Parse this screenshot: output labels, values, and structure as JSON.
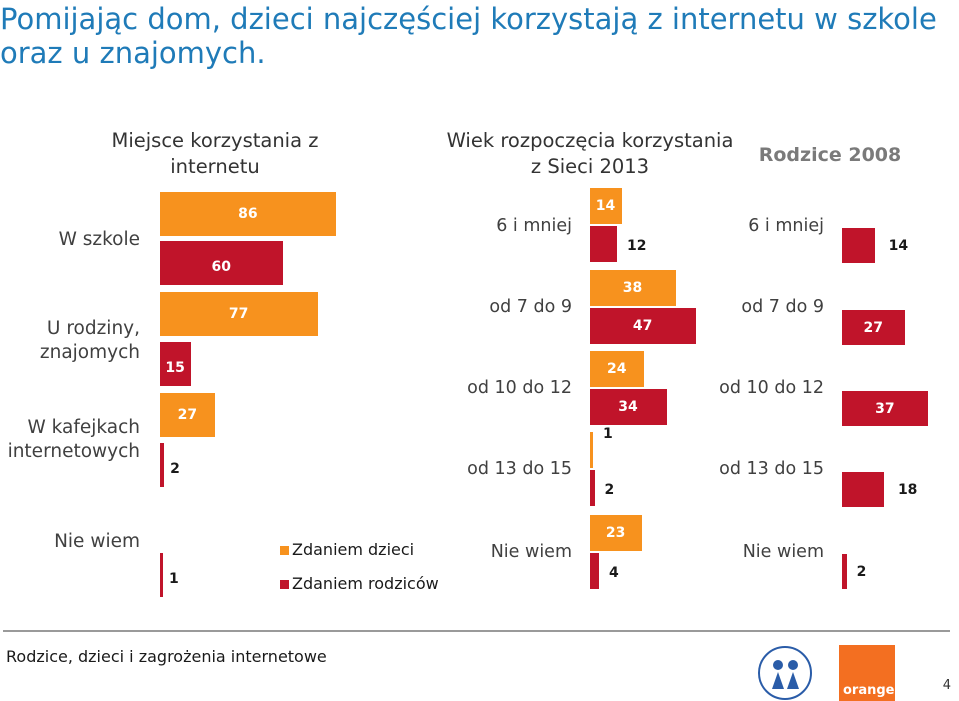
{
  "title": "Pomijając dom, dzieci najczęściej korzystają z internetu w szkole oraz u znajomych.",
  "footer": "Rodzice, dzieci i zagrożenia internetowe",
  "page_number": "4",
  "logos": {
    "left": "FUNDACJA DZIECI NICZYJE",
    "right": "orange"
  },
  "colors": {
    "children": "#f7921e",
    "parents": "#c0142a"
  },
  "legend": {
    "children": "Zdaniem dzieci",
    "parents": "Zdaniem rodziców"
  },
  "chart_data": [
    {
      "type": "bar",
      "title": "Miejsce korzystania z internetu",
      "categories": [
        "W szkole",
        "U rodziny, znajomych",
        "W kafejkach internetowych",
        "Nie wiem"
      ],
      "series": [
        {
          "name": "Zdaniem dzieci",
          "values": [
            86,
            77,
            27,
            null
          ]
        },
        {
          "name": "Zdaniem rodziców",
          "values": [
            60,
            15,
            2,
            1
          ]
        }
      ]
    },
    {
      "type": "bar",
      "title": "Wiek rozpoczęcia korzystania z Sieci 2013",
      "categories": [
        "6 i mniej",
        "od 7 do 9",
        "od 10 do 12",
        "od 13 do 15",
        "Nie wiem"
      ],
      "series": [
        {
          "name": "Zdaniem dzieci",
          "values": [
            14,
            38,
            24,
            1,
            23
          ]
        },
        {
          "name": "Zdaniem rodziców",
          "values": [
            12,
            47,
            34,
            2,
            4
          ]
        }
      ]
    },
    {
      "type": "bar",
      "title": "Rodzice 2008",
      "categories": [
        "6 i mniej",
        "od 7 do 9",
        "od 10 do 12",
        "od 13 do 15",
        "Nie wiem"
      ],
      "series": [
        {
          "name": "Zdaniem rodziców",
          "values": [
            14,
            27,
            37,
            18,
            2
          ]
        }
      ]
    }
  ]
}
